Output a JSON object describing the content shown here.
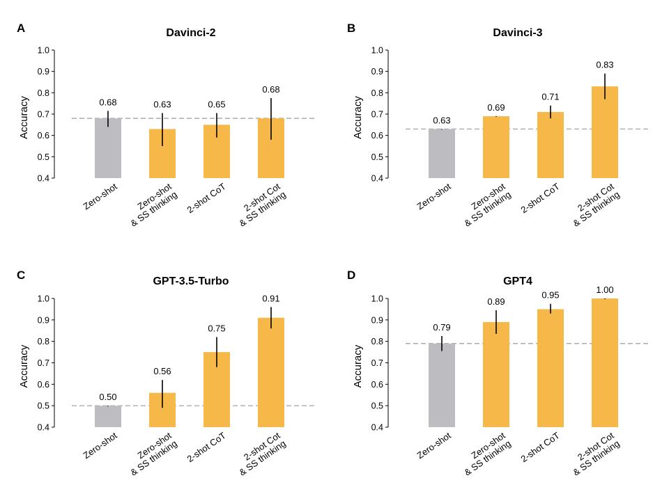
{
  "colors": {
    "baseline": "#BDBDC1",
    "method": "#F7B84A",
    "dashed": "#ABABAB",
    "axis": "#000000",
    "error": "#000000"
  },
  "chart_data": [
    {
      "type": "bar",
      "panel_label": "A",
      "title": "Davinci-2",
      "xlabel": "",
      "ylabel": "Accuracy",
      "ylim": [
        0.4,
        1.0
      ],
      "yticks": [
        "0.4",
        "0.5",
        "0.6",
        "0.7",
        "0.8",
        "0.9",
        "1.0"
      ],
      "categories": [
        [
          "Zero-shot"
        ],
        [
          "Zero-shot",
          "& SS thinking"
        ],
        [
          "2-shot CoT"
        ],
        [
          "2-shot Cot",
          "& SS thinking"
        ]
      ],
      "values": [
        0.68,
        0.63,
        0.65,
        0.68
      ],
      "labels": [
        "0.68",
        "0.63",
        "0.65",
        "0.68"
      ],
      "err_low": [
        0.64,
        0.55,
        0.59,
        0.58
      ],
      "err_high": [
        0.715,
        0.705,
        0.705,
        0.775
      ],
      "baseline": 0.68,
      "bar_colors": [
        "baseline",
        "method",
        "method",
        "method"
      ]
    },
    {
      "type": "bar",
      "panel_label": "B",
      "title": "Davinci-3",
      "xlabel": "",
      "ylabel": "Accuracy",
      "ylim": [
        0.4,
        1.0
      ],
      "yticks": [
        "0.4",
        "0.5",
        "0.6",
        "0.7",
        "0.8",
        "0.9",
        "1.0"
      ],
      "categories": [
        [
          "Zero-shot"
        ],
        [
          "Zero-shot",
          "& SS thinking"
        ],
        [
          "2-shot CoT"
        ],
        [
          "2-shot Cot",
          "& SS thinking"
        ]
      ],
      "values": [
        0.63,
        0.69,
        0.71,
        0.83
      ],
      "labels": [
        "0.63",
        "0.69",
        "0.71",
        "0.83"
      ],
      "err_low": [
        0.63,
        0.69,
        0.68,
        0.77
      ],
      "err_high": [
        0.63,
        0.69,
        0.74,
        0.89
      ],
      "baseline": 0.63,
      "bar_colors": [
        "baseline",
        "method",
        "method",
        "method"
      ]
    },
    {
      "type": "bar",
      "panel_label": "C",
      "title": "GPT-3.5-Turbo",
      "xlabel": "",
      "ylabel": "Accuracy",
      "ylim": [
        0.4,
        1.0
      ],
      "yticks": [
        "0.4",
        "0.5",
        "0.6",
        "0.7",
        "0.8",
        "0.9",
        "1.0"
      ],
      "categories": [
        [
          "Zero-shot"
        ],
        [
          "Zero-shot",
          "& SS thinking"
        ],
        [
          "2-shot CoT"
        ],
        [
          "2-shot Cot",
          "& SS thinking"
        ]
      ],
      "values": [
        0.5,
        0.56,
        0.75,
        0.91
      ],
      "labels": [
        "0.50",
        "0.56",
        "0.75",
        "0.91"
      ],
      "err_low": [
        0.5,
        0.49,
        0.68,
        0.86
      ],
      "err_high": [
        0.5,
        0.62,
        0.82,
        0.96
      ],
      "baseline": 0.5,
      "bar_colors": [
        "baseline",
        "method",
        "method",
        "method"
      ]
    },
    {
      "type": "bar",
      "panel_label": "D",
      "title": "GPT4",
      "xlabel": "",
      "ylabel": "Accuracy",
      "ylim": [
        0.4,
        1.0
      ],
      "yticks": [
        "0.4",
        "0.5",
        "0.6",
        "0.7",
        "0.8",
        "0.9",
        "1.0"
      ],
      "categories": [
        [
          "Zero-shot"
        ],
        [
          "Zero-shot",
          "& SS thinking"
        ],
        [
          "2-shot CoT"
        ],
        [
          "2-shot Cot",
          "& SS thinking"
        ]
      ],
      "values": [
        0.79,
        0.89,
        0.95,
        1.0
      ],
      "labels": [
        "0.79",
        "0.89",
        "0.95",
        "1.00"
      ],
      "err_low": [
        0.755,
        0.835,
        0.93,
        1.0
      ],
      "err_high": [
        0.825,
        0.945,
        0.975,
        1.0
      ],
      "baseline": 0.79,
      "bar_colors": [
        "baseline",
        "method",
        "method",
        "method"
      ]
    }
  ]
}
